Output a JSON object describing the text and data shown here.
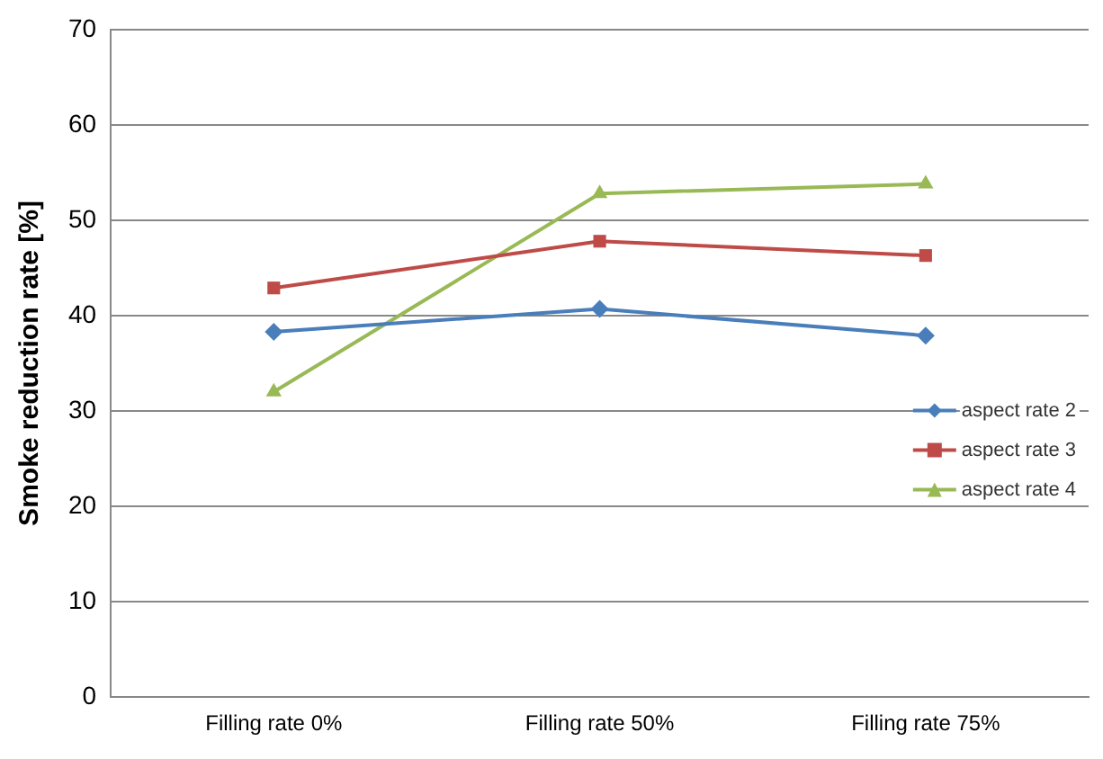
{
  "chart_data": {
    "type": "line",
    "ylabel": "Smoke reduction rate [%]",
    "categories": [
      "Filling rate 0%",
      "Filling rate 50%",
      "Filling rate 75%"
    ],
    "series": [
      {
        "name": "aspect rate 2",
        "color": "#4a7ebb",
        "values": [
          38.3,
          40.7,
          37.9
        ],
        "marker": "diamond"
      },
      {
        "name": "aspect rate 3",
        "color": "#be4b48",
        "values": [
          42.9,
          47.8,
          46.3
        ],
        "marker": "square"
      },
      {
        "name": "aspect rate 4",
        "color": "#98b954",
        "values": [
          32.0,
          52.8,
          53.8
        ],
        "marker": "triangle"
      }
    ],
    "ylim": [
      0,
      70
    ],
    "yticks": [
      0,
      10,
      20,
      30,
      40,
      50,
      60,
      70
    ],
    "grid": "y",
    "legend": "right",
    "line_style": "solid"
  }
}
